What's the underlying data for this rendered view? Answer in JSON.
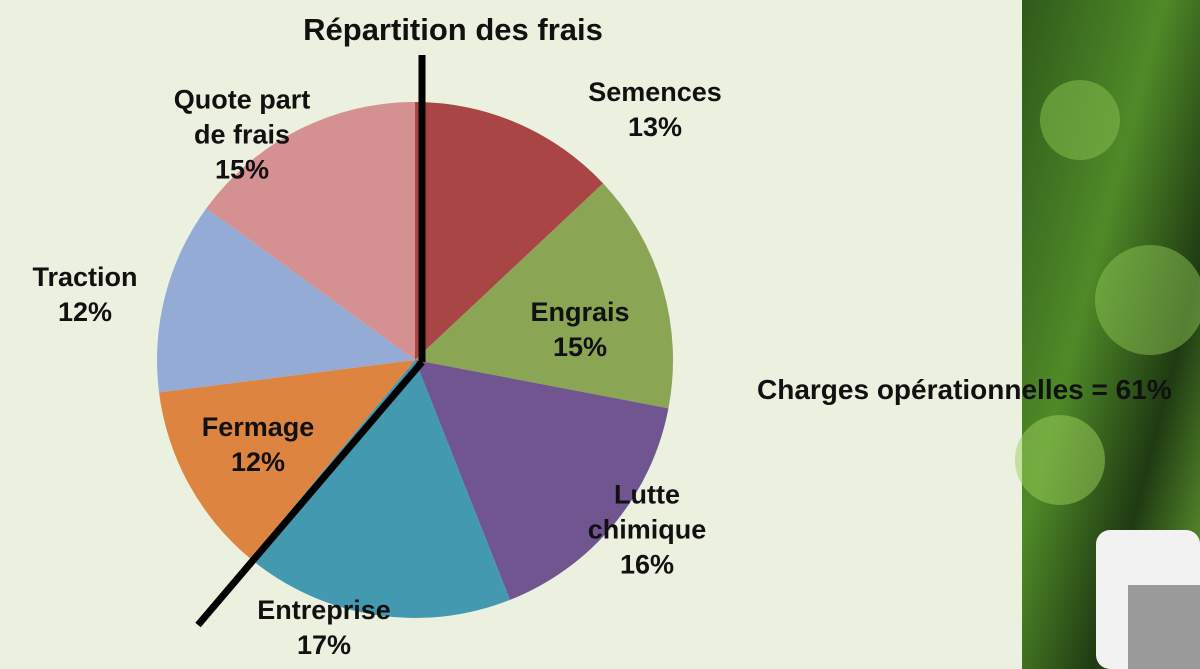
{
  "chart_data": {
    "type": "pie",
    "title": "Répartition des frais",
    "categories": [
      "Semences",
      "Engrais",
      "Lutte chimique",
      "Entreprise",
      "Fermage",
      "Traction",
      "Quote part de frais"
    ],
    "values": [
      13,
      15,
      16,
      17,
      12,
      12,
      15
    ],
    "value_labels": [
      "13%",
      "15%",
      "16%",
      "17%",
      "12%",
      "12%",
      "15%"
    ],
    "colors": [
      "#a94544",
      "#8aa553",
      "#715590",
      "#4299b0",
      "#dd8540",
      "#94abd6",
      "#d59092"
    ],
    "annotation": "Charges opérationnelles = 61%"
  }
}
